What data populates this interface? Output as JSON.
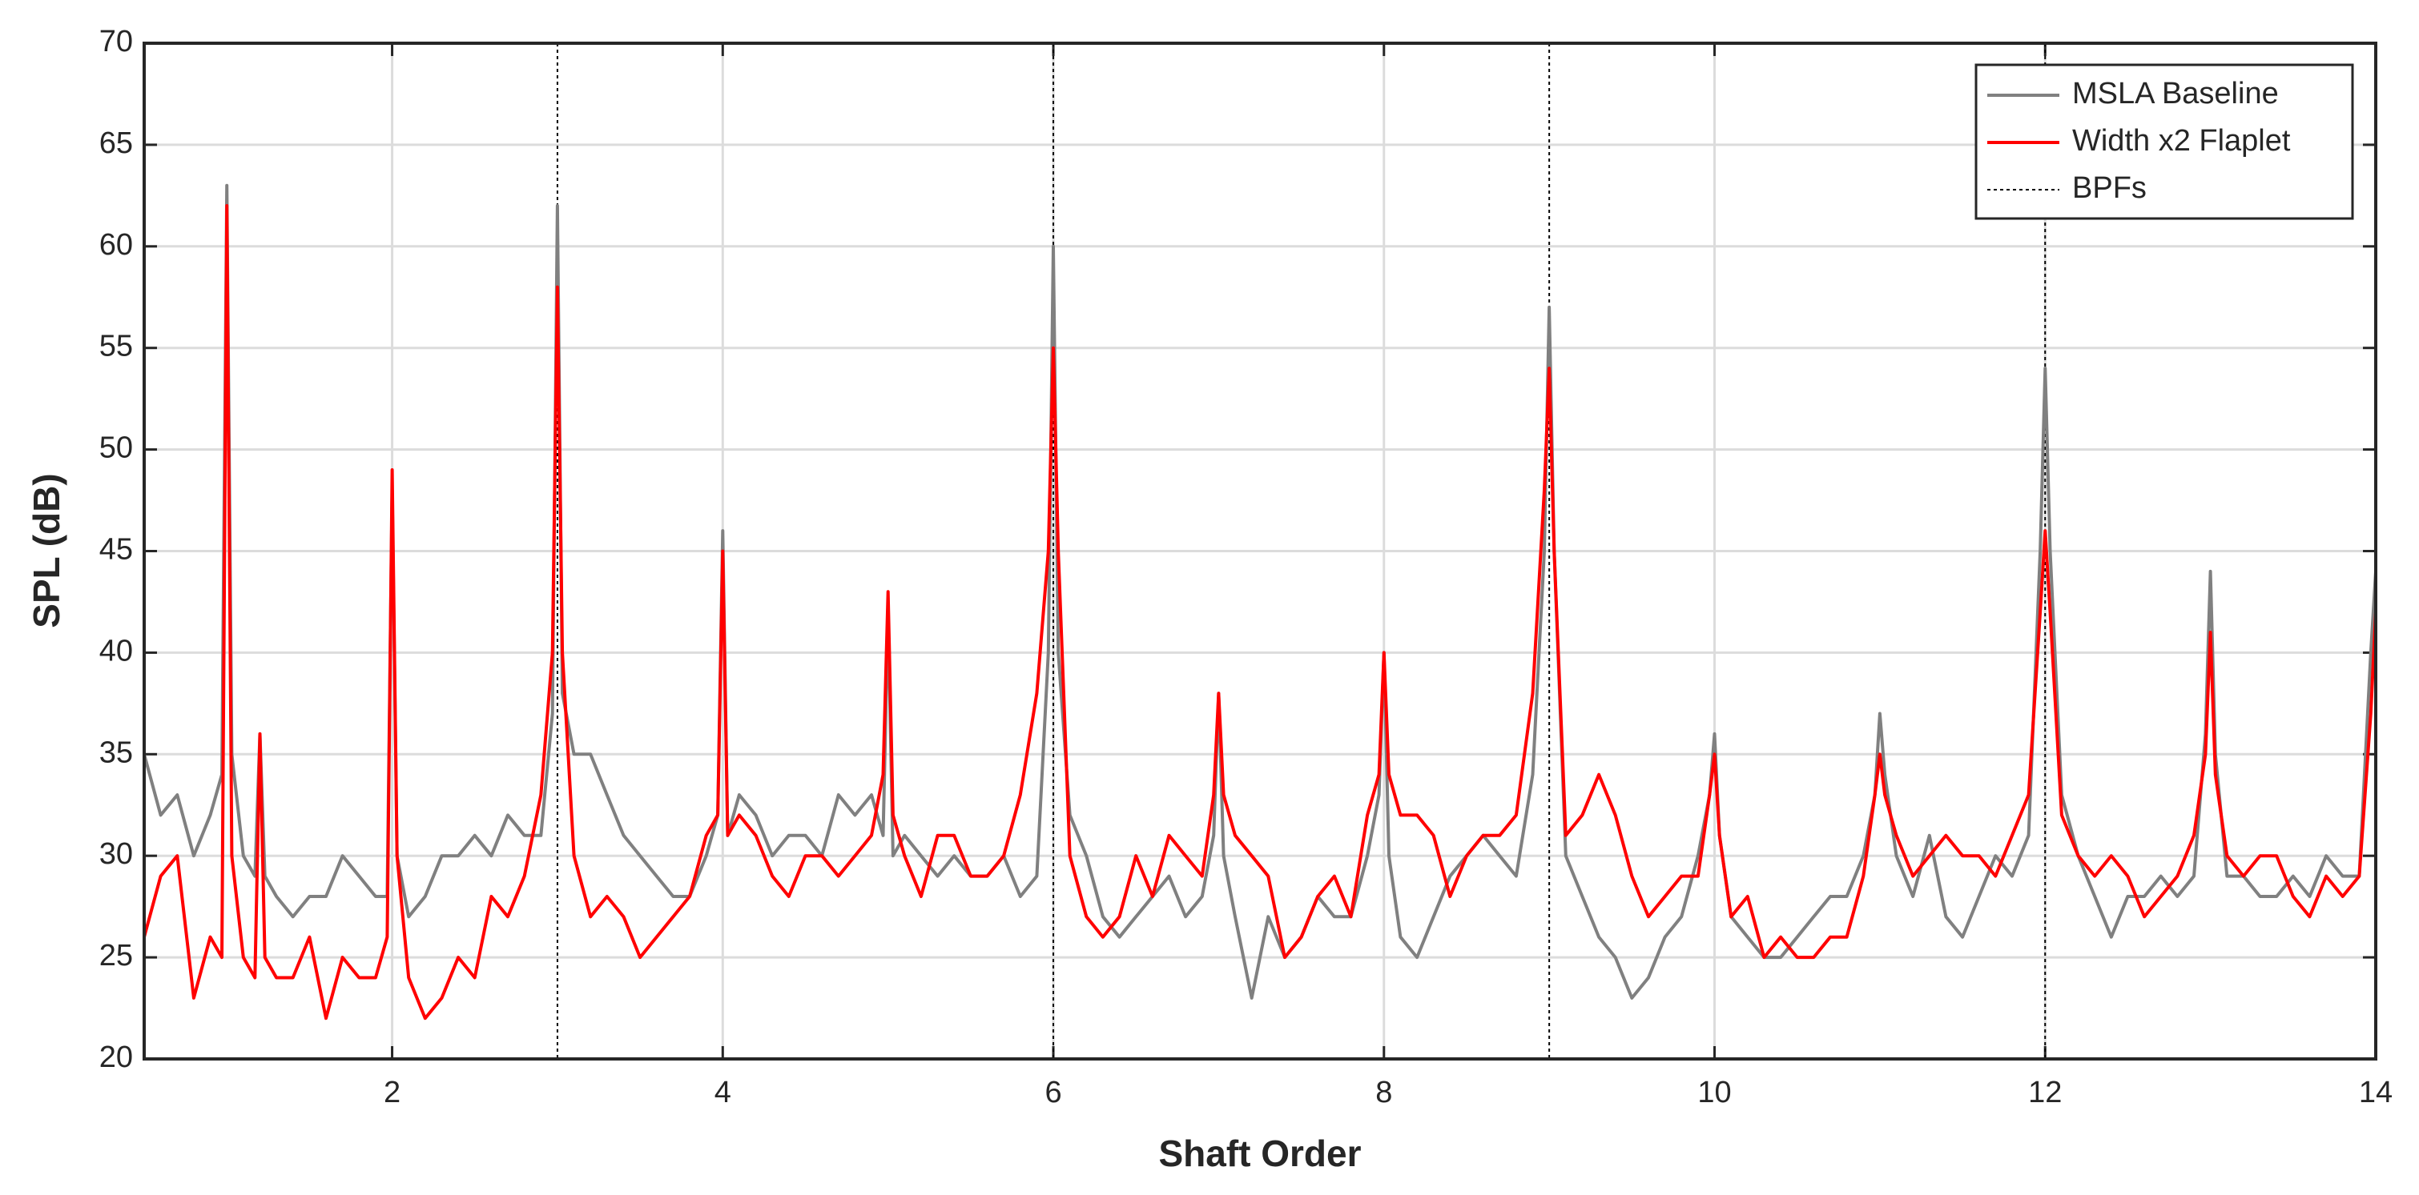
{
  "chart_data": {
    "type": "line",
    "x_label": "Shaft Order",
    "y_label": "SPL (dB)",
    "xlim": [
      0.5,
      14
    ],
    "ylim": [
      20,
      70
    ],
    "xticks": [
      2,
      4,
      6,
      8,
      10,
      12,
      14
    ],
    "yticks": [
      20,
      25,
      30,
      35,
      40,
      45,
      50,
      55,
      60,
      65,
      70
    ],
    "grid": true,
    "legend": "upper right",
    "x": [
      0.5,
      0.6,
      0.7,
      0.8,
      0.9,
      0.97,
      1.0,
      1.03,
      1.1,
      1.17,
      1.2,
      1.23,
      1.3,
      1.4,
      1.5,
      1.6,
      1.7,
      1.8,
      1.9,
      1.97,
      2.0,
      2.03,
      2.1,
      2.2,
      2.3,
      2.4,
      2.5,
      2.6,
      2.7,
      2.8,
      2.9,
      2.97,
      3.0,
      3.03,
      3.1,
      3.2,
      3.3,
      3.4,
      3.5,
      3.6,
      3.7,
      3.8,
      3.9,
      3.97,
      4.0,
      4.03,
      4.1,
      4.2,
      4.3,
      4.4,
      4.5,
      4.6,
      4.7,
      4.8,
      4.9,
      4.97,
      5.0,
      5.03,
      5.1,
      5.2,
      5.3,
      5.4,
      5.5,
      5.6,
      5.7,
      5.8,
      5.9,
      5.97,
      6.0,
      6.03,
      6.1,
      6.2,
      6.3,
      6.4,
      6.5,
      6.6,
      6.7,
      6.8,
      6.9,
      6.97,
      7.0,
      7.03,
      7.1,
      7.2,
      7.3,
      7.4,
      7.5,
      7.6,
      7.7,
      7.8,
      7.9,
      7.97,
      8.0,
      8.03,
      8.1,
      8.2,
      8.3,
      8.4,
      8.5,
      8.6,
      8.7,
      8.8,
      8.9,
      8.97,
      9.0,
      9.03,
      9.1,
      9.2,
      9.3,
      9.4,
      9.5,
      9.6,
      9.7,
      9.8,
      9.9,
      9.97,
      10.0,
      10.03,
      10.1,
      10.2,
      10.3,
      10.4,
      10.5,
      10.6,
      10.7,
      10.8,
      10.9,
      10.97,
      11.0,
      11.03,
      11.1,
      11.2,
      11.3,
      11.4,
      11.5,
      11.6,
      11.7,
      11.8,
      11.9,
      11.97,
      12.0,
      12.03,
      12.1,
      12.2,
      12.3,
      12.4,
      12.5,
      12.6,
      12.7,
      12.8,
      12.9,
      12.97,
      13.0,
      13.03,
      13.1,
      13.2,
      13.3,
      13.4,
      13.5,
      13.6,
      13.7,
      13.8,
      13.9,
      13.97,
      14.0
    ],
    "series": [
      {
        "name": "MSLA Baseline",
        "color": "#808080",
        "values": [
          35,
          32,
          33,
          30,
          32,
          34,
          63,
          35,
          30,
          29,
          36,
          29,
          28,
          27,
          28,
          28,
          30,
          29,
          28,
          28,
          48,
          30,
          27,
          28,
          30,
          30,
          31,
          30,
          32,
          31,
          31,
          37,
          62,
          38,
          35,
          35,
          33,
          31,
          30,
          29,
          28,
          28,
          30,
          32,
          46,
          31,
          33,
          32,
          30,
          31,
          31,
          30,
          33,
          32,
          33,
          31,
          42,
          30,
          31,
          30,
          29,
          30,
          29,
          29,
          30,
          28,
          29,
          40,
          60,
          40,
          32,
          30,
          27,
          26,
          27,
          28,
          29,
          27,
          28,
          31,
          38,
          30,
          27,
          23,
          27,
          25,
          26,
          28,
          27,
          27,
          30,
          33,
          40,
          30,
          26,
          25,
          27,
          29,
          30,
          31,
          30,
          29,
          34,
          45,
          57,
          45,
          30,
          28,
          26,
          25,
          23,
          24,
          26,
          27,
          30,
          33,
          36,
          31,
          27,
          26,
          25,
          25,
          26,
          27,
          28,
          28,
          30,
          33,
          37,
          34,
          30,
          28,
          31,
          27,
          26,
          28,
          30,
          29,
          31,
          45,
          54,
          45,
          33,
          30,
          28,
          26,
          28,
          28,
          29,
          28,
          29,
          36,
          44,
          35,
          29,
          29,
          28,
          28,
          29,
          28,
          30,
          29,
          29,
          40,
          44
        ]
      },
      {
        "name": "Width x2 Flaplet",
        "color": "#ff0000",
        "values": [
          26,
          29,
          30,
          23,
          26,
          25,
          62,
          30,
          25,
          24,
          36,
          25,
          24,
          24,
          26,
          22,
          25,
          24,
          24,
          26,
          49,
          30,
          24,
          22,
          23,
          25,
          24,
          28,
          27,
          29,
          33,
          40,
          58,
          40,
          30,
          27,
          28,
          27,
          25,
          26,
          27,
          28,
          31,
          32,
          45,
          31,
          32,
          31,
          29,
          28,
          30,
          30,
          29,
          30,
          31,
          34,
          43,
          32,
          30,
          28,
          31,
          31,
          29,
          29,
          30,
          33,
          38,
          45,
          55,
          45,
          30,
          27,
          26,
          27,
          30,
          28,
          31,
          30,
          29,
          33,
          38,
          33,
          31,
          30,
          29,
          25,
          26,
          28,
          29,
          27,
          32,
          34,
          40,
          34,
          32,
          32,
          31,
          28,
          30,
          31,
          31,
          32,
          38,
          48,
          54,
          45,
          31,
          32,
          34,
          32,
          29,
          27,
          28,
          29,
          29,
          33,
          35,
          31,
          27,
          28,
          25,
          26,
          25,
          25,
          26,
          26,
          29,
          33,
          35,
          33,
          31,
          29,
          30,
          31,
          30,
          30,
          29,
          31,
          33,
          42,
          46,
          42,
          32,
          30,
          29,
          30,
          29,
          27,
          28,
          29,
          31,
          35,
          41,
          34,
          30,
          29,
          30,
          30,
          28,
          27,
          29,
          28,
          29,
          37,
          42
        ]
      }
    ],
    "reference_lines": {
      "name": "BPFs",
      "color": "#000000",
      "x": [
        3,
        6,
        9,
        12
      ]
    }
  }
}
